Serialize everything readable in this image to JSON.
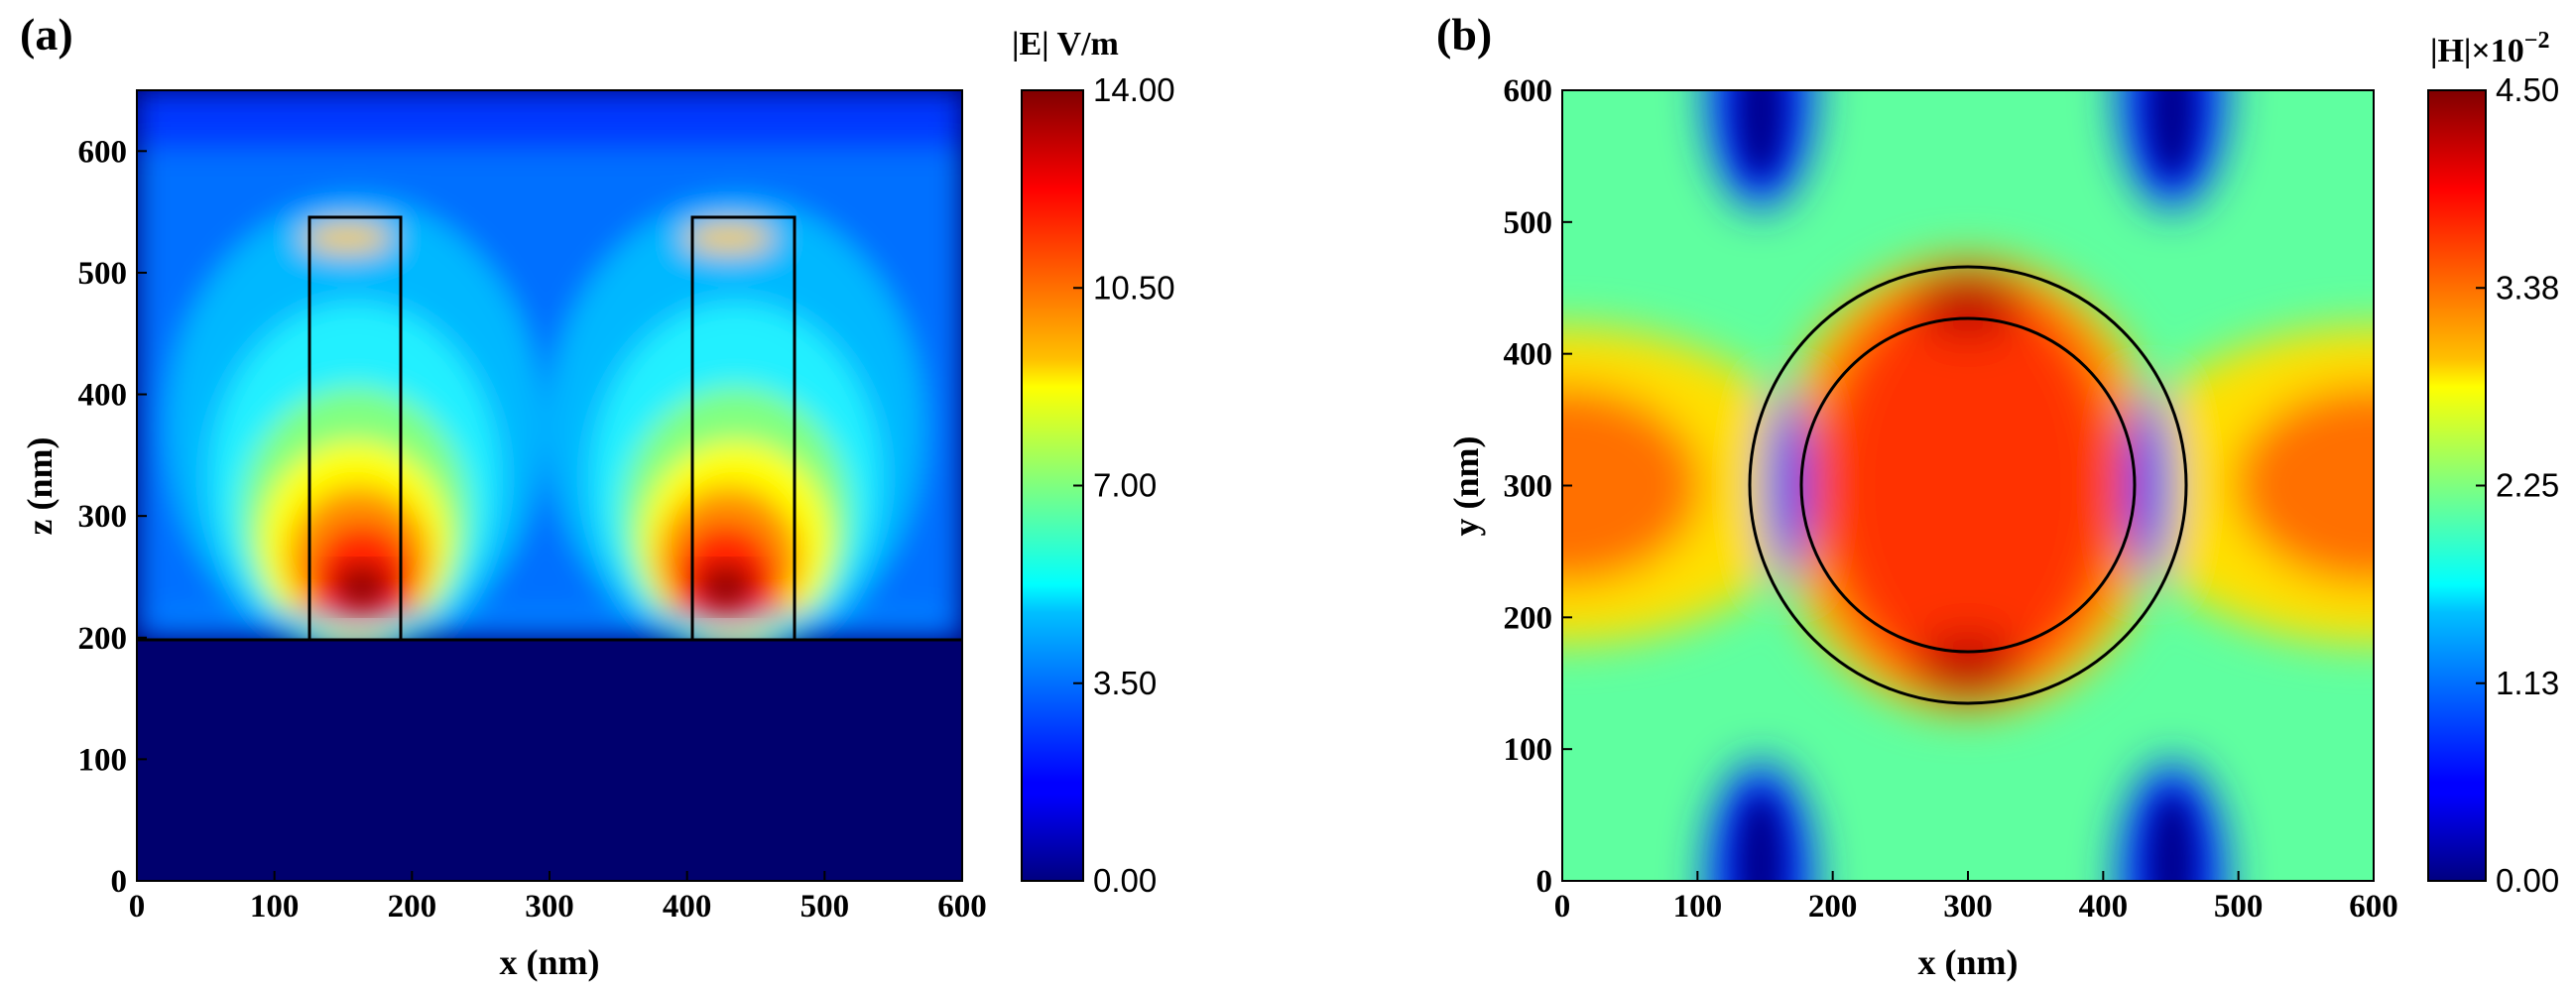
{
  "chart_data": [
    {
      "type": "heatmap",
      "panel": "(a)",
      "title": "",
      "xlabel": "x (nm)",
      "ylabel": "z (nm)",
      "xlim": [
        0,
        600
      ],
      "ylim": [
        0,
        650
      ],
      "xticks": [
        0,
        100,
        200,
        300,
        400,
        500,
        600
      ],
      "yticks": [
        0,
        100,
        200,
        300,
        400,
        500,
        600
      ],
      "colorbar": {
        "title": "|E| V/m",
        "range": [
          0,
          14
        ],
        "tick_labels": [
          "0.00",
          "3.50",
          "7.00",
          "10.50",
          "14.00"
        ],
        "tick_values": [
          0,
          3.5,
          7,
          10.5,
          14
        ],
        "colormap": "jet"
      },
      "substrate_z": 200,
      "pillars": [
        {
          "x_min": 127,
          "x_max": 192,
          "z_min": 200,
          "z_max": 545
        },
        {
          "x_min": 405,
          "x_max": 478,
          "z_min": 200,
          "z_max": 545
        }
      ],
      "field_maxima": [
        {
          "x": 160,
          "z": 235,
          "value": 14
        },
        {
          "x": 441,
          "z": 235,
          "value": 14
        }
      ]
    },
    {
      "type": "heatmap",
      "panel": "(b)",
      "title": "",
      "xlabel": "x (nm)",
      "ylabel": "y (nm)",
      "xlim": [
        0,
        600
      ],
      "ylim": [
        0,
        600
      ],
      "xticks": [
        0,
        100,
        200,
        300,
        400,
        500,
        600
      ],
      "yticks": [
        0,
        100,
        200,
        300,
        400,
        500,
        600
      ],
      "colorbar": {
        "title_main": "|H|×10",
        "title_exp": "−2",
        "range": [
          0,
          4.5
        ],
        "tick_labels": [
          "0.00",
          "1.13",
          "2.25",
          "3.38",
          "4.50"
        ],
        "tick_values": [
          0,
          1.125,
          2.25,
          3.375,
          4.5
        ],
        "colormap": "jet"
      },
      "circles": [
        {
          "cx": 300,
          "cy": 300,
          "r": 165
        },
        {
          "cx": 300,
          "cy": 300,
          "r": 125
        }
      ]
    }
  ]
}
